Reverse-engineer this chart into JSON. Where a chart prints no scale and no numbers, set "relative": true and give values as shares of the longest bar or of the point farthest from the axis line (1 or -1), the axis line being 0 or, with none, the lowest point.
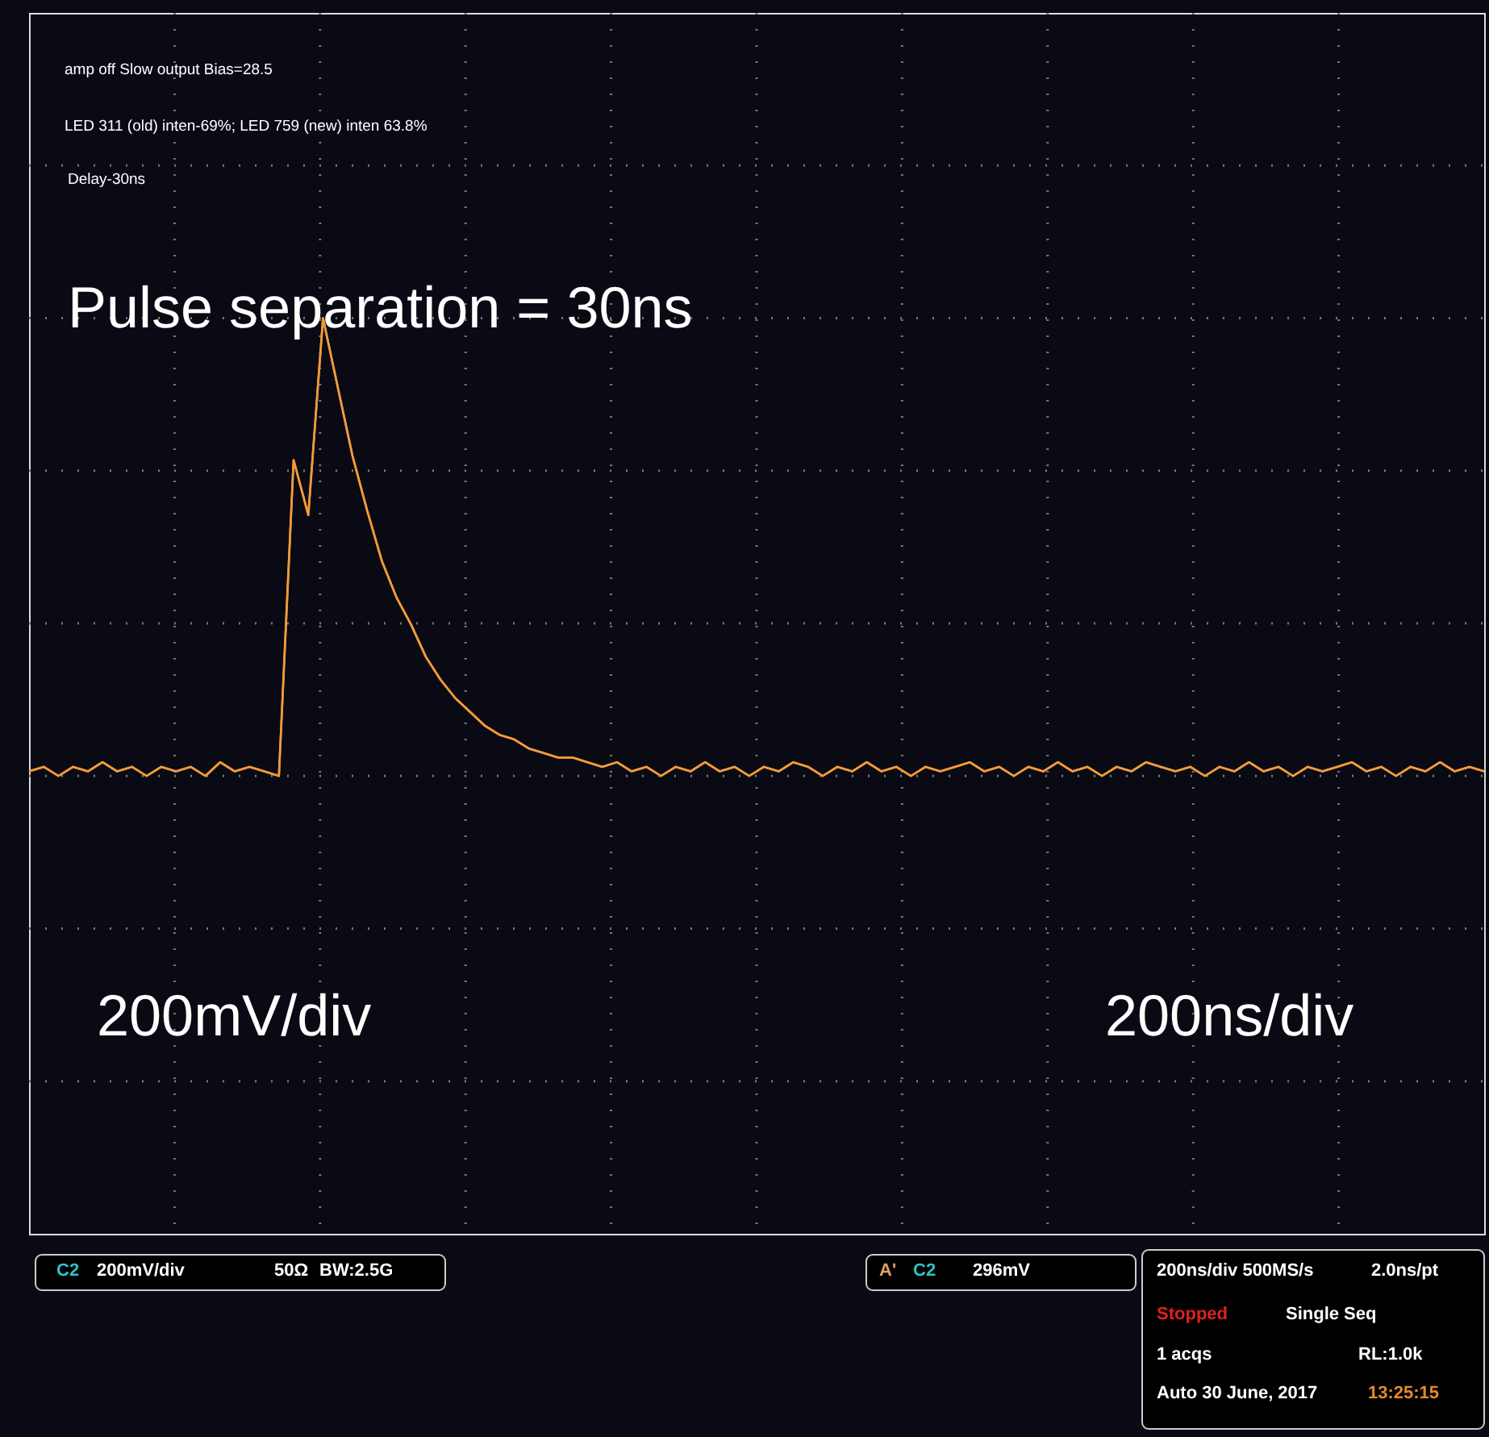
{
  "chart_data": {
    "type": "line",
    "relative": true,
    "grid": true,
    "tick_labels": false,
    "marker": "none",
    "line_style": "solid",
    "categories": [
      null,
      null,
      null,
      null,
      null,
      null,
      null,
      null,
      null,
      null,
      null,
      null,
      null,
      null,
      null,
      null,
      null,
      null,
      null,
      null,
      null,
      null,
      null,
      null,
      null,
      null,
      null,
      null,
      null,
      null,
      null,
      null,
      null,
      null,
      null,
      null,
      null,
      null,
      null,
      null,
      null,
      null,
      null,
      null,
      null,
      null,
      null,
      null,
      null,
      null,
      null,
      null,
      null,
      null,
      null,
      null,
      null,
      null,
      null,
      null,
      null,
      null,
      null,
      null,
      null,
      null,
      null,
      null,
      null,
      null,
      null,
      null,
      null,
      null,
      null,
      null,
      null,
      null,
      null,
      null,
      null,
      null,
      null,
      null,
      null,
      null,
      null,
      null,
      null,
      null,
      null,
      null,
      null,
      null,
      null,
      null,
      null,
      null,
      null,
      null
    ],
    "series": [
      {
        "color": "#f29b38",
        "values": [
          0.01,
          0.02,
          0.0,
          0.02,
          0.01,
          0.03,
          0.01,
          0.02,
          0.0,
          0.02,
          0.01,
          0.02,
          0.0,
          0.03,
          0.01,
          0.02,
          0.01,
          0.0,
          0.69,
          0.57,
          1.0,
          0.85,
          0.7,
          0.58,
          0.47,
          0.39,
          0.33,
          0.26,
          0.21,
          0.17,
          0.14,
          0.11,
          0.09,
          0.08,
          0.06,
          0.05,
          0.04,
          0.04,
          0.03,
          0.02,
          0.03,
          0.01,
          0.02,
          0.0,
          0.02,
          0.01,
          0.03,
          0.01,
          0.02,
          0.0,
          0.02,
          0.01,
          0.03,
          0.02,
          0.0,
          0.02,
          0.01,
          0.03,
          0.01,
          0.02,
          0.0,
          0.02,
          0.01,
          0.02,
          0.03,
          0.01,
          0.02,
          0.0,
          0.02,
          0.01,
          0.03,
          0.01,
          0.02,
          0.0,
          0.02,
          0.01,
          0.03,
          0.02,
          0.01,
          0.02,
          0.0,
          0.02,
          0.01,
          0.03,
          0.01,
          0.02,
          0.0,
          0.02,
          0.01,
          0.02,
          0.03,
          0.01,
          0.02,
          0.0,
          0.02,
          0.01,
          0.03,
          0.01,
          0.02,
          0.01
        ]
      }
    ],
    "annotations": [
      "amp off Slow output Bias=28.5",
      "LED 311 (old) inten-69%; LED 759 (new) inten 63.8%",
      "Delay-30ns",
      "Pulse separation = 30ns",
      "200mV/div",
      "200ns/div",
      "C2",
      "200mV/div",
      "50Ω",
      "BW:2.5G",
      "A'",
      "C2",
      "296mV",
      "200ns/div   500MS/s",
      "2.0ns/pt",
      "Stopped",
      "Single Seq",
      "1 acqs",
      "RL:1.0k",
      "Auto   30 June, 2017",
      "13:25:15"
    ]
  }
}
